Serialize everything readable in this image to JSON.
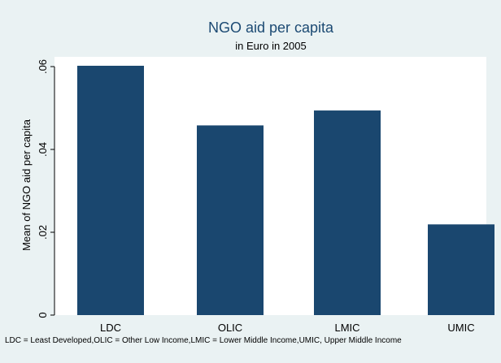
{
  "chart_data": {
    "type": "bar",
    "title": "NGO aid per capita",
    "subtitle": "in Euro in 2005",
    "xlabel": "",
    "ylabel": "Mean of NGO aid per capita",
    "categories": [
      "LDC",
      "OLIC",
      "LMIC",
      "UMIC"
    ],
    "values": [
      0.0602,
      0.0458,
      0.0494,
      0.0219
    ],
    "ylim": [
      0,
      0.06
    ],
    "yticks": [
      0,
      0.02,
      0.04,
      0.06
    ],
    "ytick_labels": [
      "0",
      ".02",
      ".04",
      ".06"
    ],
    "note": "LDC = Least Developed,OLIC = Other Low Income,LMIC = Lower Middle Income,UMIC, Upper Middle Income",
    "grid": false,
    "colors": {
      "bar": "#1a476f",
      "plot_background": "#ffffff",
      "outer_background": "#eaf2f3",
      "title": "#1c4a73"
    }
  }
}
